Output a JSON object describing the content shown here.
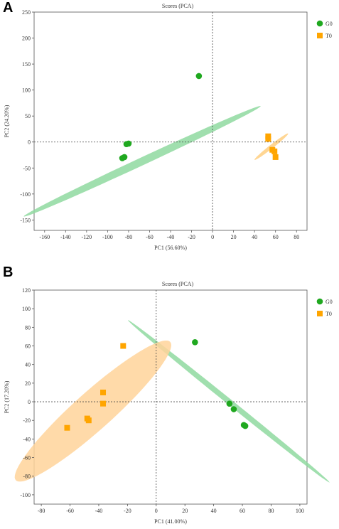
{
  "panels": [
    {
      "letter": "A",
      "chart_data": {
        "type": "scatter",
        "title": "Scores (PCA)",
        "xlabel": "PC1 (56.60%)",
        "ylabel": "PC2 (24.20%)",
        "xlim": [
          -170,
          90
        ],
        "ylim": [
          -170,
          250
        ],
        "xticks": [
          -160,
          -140,
          -120,
          -100,
          -80,
          -60,
          -40,
          -20,
          0,
          20,
          40,
          60,
          80
        ],
        "yticks": [
          -150,
          -100,
          -50,
          0,
          50,
          100,
          150,
          200,
          250
        ],
        "legend_position": "right",
        "series": [
          {
            "name": "G0",
            "marker": "circle",
            "color": "#1fa81f",
            "fill": "#8fd9a0",
            "points": [
              [
                -13,
                127
              ],
              [
                -80,
                -3
              ],
              [
                -82,
                -4
              ],
              [
                -84,
                -29
              ],
              [
                -86,
                -31
              ]
            ],
            "ellipse": {
              "cx": -67,
              "cy": -37,
              "a": 155,
              "b": 6,
              "angle_deg": 43.3
            }
          },
          {
            "name": "T0",
            "marker": "square",
            "color": "#ffa500",
            "fill": "#ffcf80",
            "points": [
              [
                53,
                11
              ],
              [
                53,
                6
              ],
              [
                57,
                -15
              ],
              [
                59,
                -18
              ],
              [
                60,
                -29
              ]
            ],
            "ellipse": {
              "cx": 56,
              "cy": -9,
              "a": 30,
              "b": 2.5,
              "angle_deg": 58
            }
          }
        ]
      }
    },
    {
      "letter": "B",
      "chart_data": {
        "type": "scatter",
        "title": "Scores (PCA)",
        "xlabel": "PC1 (41.00%)",
        "ylabel": "PC2 (17.20%)",
        "xlim": [
          -85,
          105
        ],
        "ylim": [
          -110,
          120
        ],
        "xticks": [
          -80,
          -60,
          -40,
          -20,
          0,
          20,
          40,
          60,
          80,
          100
        ],
        "yticks": [
          -100,
          -80,
          -60,
          -40,
          -20,
          0,
          20,
          40,
          60,
          80,
          100,
          120
        ],
        "legend_position": "right",
        "series": [
          {
            "name": "G0",
            "marker": "circle",
            "color": "#1fa81f",
            "fill": "#8fd9a0",
            "points": [
              [
                27,
                64
              ],
              [
                51,
                -2
              ],
              [
                54,
                -8
              ],
              [
                61,
                -25
              ],
              [
                62,
                -26
              ]
            ],
            "ellipse": {
              "cx": 50.5,
              "cy": 0.5,
              "a": 112,
              "b": 2.4,
              "angle_deg": -51.2
            }
          },
          {
            "name": "T0",
            "marker": "square",
            "color": "#ffa500",
            "fill": "#ffd39a",
            "points": [
              [
                -23,
                60
              ],
              [
                -37,
                10
              ],
              [
                -37,
                -2
              ],
              [
                -48,
                -18
              ],
              [
                -47,
                -20
              ],
              [
                -62,
                -28
              ]
            ],
            "ellipse": {
              "cx": -44,
              "cy": -10,
              "a": 92,
              "b": 16,
              "angle_deg": 54.9
            }
          }
        ]
      }
    }
  ]
}
